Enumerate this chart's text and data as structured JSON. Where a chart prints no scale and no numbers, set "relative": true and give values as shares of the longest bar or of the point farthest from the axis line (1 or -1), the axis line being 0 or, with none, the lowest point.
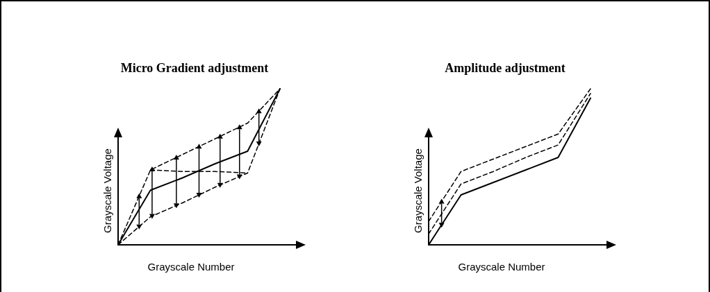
{
  "chart_data": [
    {
      "type": "line",
      "title": "Micro Gradient adjustment",
      "xlabel": "Grayscale Number",
      "ylabel": "Grayscale Voltage",
      "relative": true,
      "marker": "none",
      "grid": false,
      "categories": [
        null,
        null,
        null,
        null,
        null,
        null
      ],
      "series": [
        {
          "color": "#000000",
          "line_style": "solid",
          "values": [
            0,
            0.35,
            0.43,
            0.52,
            0.6,
            1
          ]
        },
        {
          "color": "#000000",
          "line_style": "dashed",
          "values": [
            0,
            0.48,
            0.58,
            0.68,
            0.78,
            1
          ]
        },
        {
          "color": "#000000",
          "line_style": "dashed",
          "values": [
            0,
            0.18,
            0.27,
            0.37,
            0.46,
            1
          ]
        },
        {
          "color": "#000000",
          "line_style": "dashed",
          "values": [
            null,
            0.48,
            0.47,
            0.47,
            0.46,
            null
          ]
        }
      ]
    },
    {
      "type": "line",
      "title": "Amplitude adjustment",
      "xlabel": "Grayscale Number",
      "ylabel": "Grayscale Voltage",
      "relative": true,
      "marker": "none",
      "grid": false,
      "categories": [
        null,
        null,
        null,
        null,
        null,
        null
      ],
      "series": [
        {
          "color": "#000000",
          "line_style": "solid",
          "values": [
            0,
            0.32,
            0.4,
            0.48,
            0.56,
            0.94
          ]
        },
        {
          "color": "#000000",
          "line_style": "dashed",
          "values": [
            0.07,
            0.39,
            0.47,
            0.56,
            0.64,
            0.97
          ]
        },
        {
          "color": "#000000",
          "line_style": "dashed",
          "values": [
            0.15,
            0.47,
            0.55,
            0.63,
            0.71,
            1
          ]
        }
      ]
    }
  ]
}
